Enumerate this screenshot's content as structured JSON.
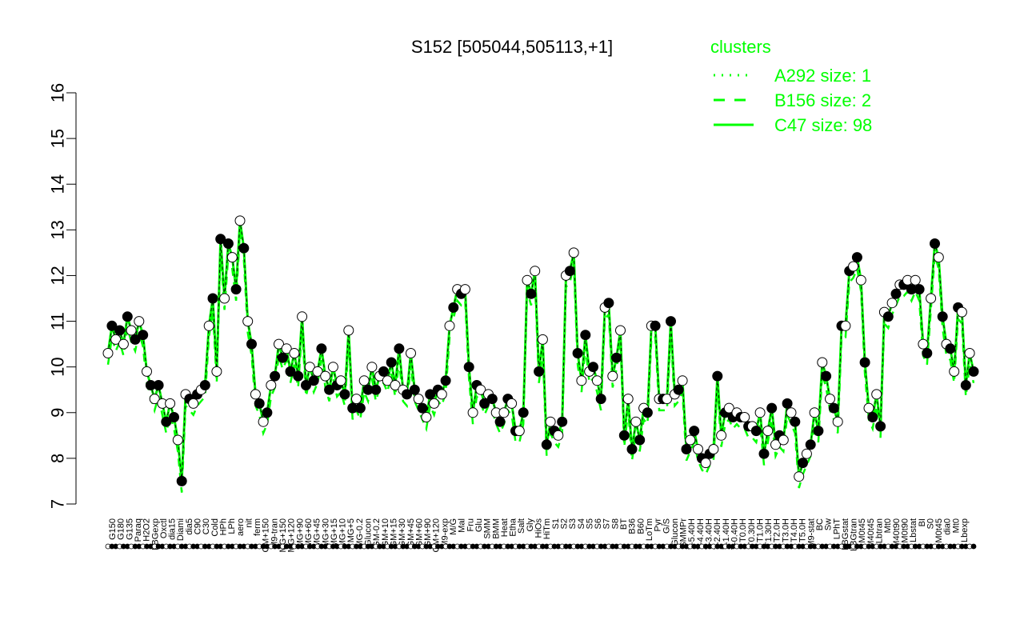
{
  "chart_data": {
    "type": "line",
    "title": "S152 [505044,505113,+1]",
    "xlabel": "",
    "ylabel": "",
    "ylim": [
      7,
      16
    ],
    "yticks": [
      7,
      8,
      9,
      10,
      11,
      12,
      13,
      14,
      15,
      16
    ],
    "grid": false,
    "legend": {
      "title": "clusters",
      "position": "top-right",
      "entries": [
        {
          "label": "A292 size: 1",
          "style": "dotted"
        },
        {
          "label": "B156 size: 2",
          "style": "dashed"
        },
        {
          "label": "C47 size: 98",
          "style": "solid"
        }
      ]
    },
    "colors": {
      "series": "#00ff00",
      "axis": "#000000"
    },
    "x_labels": [
      "G150",
      "G180",
      "G135",
      "Paraq",
      "H2O2",
      "LBGexp",
      "Oxctl",
      "dia15",
      "Diami",
      "dia5",
      "C90",
      "C30",
      "Cold",
      "HPh",
      "LPh",
      "aero",
      "nit",
      "ferm",
      "GM+150",
      "M9-tran",
      "MG+150",
      "MG+120",
      "MG+90",
      "MG+60",
      "MG+45",
      "MG+30",
      "MG+15",
      "MG+10",
      "MG+5",
      "MG-0.2",
      "Glucon",
      "GM-0.2",
      "GM+10",
      "GM+15",
      "GM+30",
      "GM+45",
      "GM+60",
      "GM+90",
      "GM+120",
      "M9-exp",
      "M/G",
      "Mal",
      "Fru",
      "Glu",
      "SMM",
      "BMM",
      "Heat",
      "Etha",
      "Salt",
      "Gly",
      "HiOs",
      "HiTm",
      "S1",
      "S2",
      "S3",
      "S4",
      "S5",
      "S6",
      "S7",
      "S8",
      "BT",
      "B36",
      "B60",
      "LoTm",
      "Pyr",
      "G/S",
      "Glucon",
      "SMMPr",
      "T-5.40H",
      "T-4.40H",
      "T-3.40H",
      "T-2.40H",
      "T-1.40H",
      "T-0.40H",
      "T0.0H",
      "T0.30H",
      "T1.0H",
      "T1.30H",
      "T2.0H",
      "T3.0H",
      "T4.0H",
      "T5.0H",
      "M9-stat",
      "BC",
      "Sw",
      "LPhT",
      "LBGstat",
      "LBGtran",
      "M0t45",
      "M40t45",
      "Lbtran",
      "Mt0",
      "M40t90",
      "M0t90",
      "Lbstat",
      "BI",
      "S0",
      "M0t45",
      "dia0",
      "Mt0",
      "Lbexp"
    ],
    "series": [
      {
        "values": [
          10.3,
          10.9,
          10.6,
          10.8,
          10.5,
          11.1,
          10.8,
          10.6,
          11.0,
          10.7,
          9.9,
          9.6,
          9.3,
          9.6,
          9.2,
          8.8,
          9.2,
          8.9,
          8.4,
          7.5,
          9.4,
          9.3,
          9.2,
          9.4,
          9.5,
          9.6,
          10.9,
          11.5,
          9.9,
          12.8,
          11.5,
          12.7,
          12.4,
          11.7,
          13.2,
          12.6,
          11.0,
          10.5,
          9.4,
          9.2,
          8.8,
          9.0,
          9.6,
          9.8,
          10.5,
          10.2,
          10.4,
          9.9,
          10.3,
          9.8,
          11.1,
          9.6,
          10.0,
          9.7,
          9.9,
          10.4,
          9.8,
          9.5,
          10.0,
          9.6,
          9.7,
          9.4,
          10.8,
          9.1,
          9.3,
          9.1,
          9.7,
          9.5,
          10.0,
          9.5,
          9.8,
          9.9,
          9.7,
          10.1,
          9.6,
          10.4,
          9.5,
          9.4,
          10.3,
          9.5,
          9.3,
          9.1,
          8.9,
          9.4,
          9.2,
          9.5,
          9.4,
          9.7,
          10.9,
          11.3,
          11.7,
          11.6,
          11.7,
          10.0,
          9.0,
          9.6,
          9.5,
          9.2,
          9.4,
          9.3,
          9.0,
          8.8,
          9.0,
          9.3,
          9.2,
          8.6,
          8.6,
          9.0,
          11.9,
          11.6,
          12.1,
          9.9,
          10.6,
          8.3,
          8.8,
          8.6,
          8.5,
          8.8,
          12.0,
          12.1,
          12.5,
          10.3,
          9.7,
          10.7,
          9.9,
          10.0,
          9.7,
          9.3,
          11.3,
          11.4,
          9.8,
          10.2,
          10.8,
          8.5,
          9.3,
          8.2,
          8.8,
          8.4,
          9.1,
          9.0,
          10.9,
          10.9,
          9.3,
          9.3,
          9.3,
          11.0,
          9.4,
          9.5,
          9.7,
          8.2,
          8.4,
          8.6,
          8.2,
          8.0,
          7.9,
          8.1,
          8.2,
          9.8,
          8.5,
          9.0,
          9.1,
          8.9,
          9.0,
          8.9,
          8.9,
          8.7,
          8.7,
          8.6,
          9.0,
          8.1,
          8.6,
          9.1,
          8.3,
          8.5,
          8.4,
          9.2,
          9.0,
          8.8,
          7.6,
          7.9,
          8.1,
          8.3,
          9.0,
          8.6,
          10.1,
          9.8,
          9.3,
          9.1,
          8.8,
          10.9,
          10.9,
          12.1,
          12.2,
          12.4,
          11.9,
          10.1,
          9.1,
          8.9,
          9.4,
          8.7,
          11.2,
          11.1,
          11.4,
          11.6,
          11.8,
          11.8,
          11.9,
          11.7,
          11.9,
          11.7,
          10.5,
          10.3,
          11.5,
          12.7,
          12.4,
          11.1,
          10.5,
          10.4,
          9.9,
          11.3,
          11.2,
          9.6,
          10.3,
          9.9
        ]
      }
    ]
  }
}
